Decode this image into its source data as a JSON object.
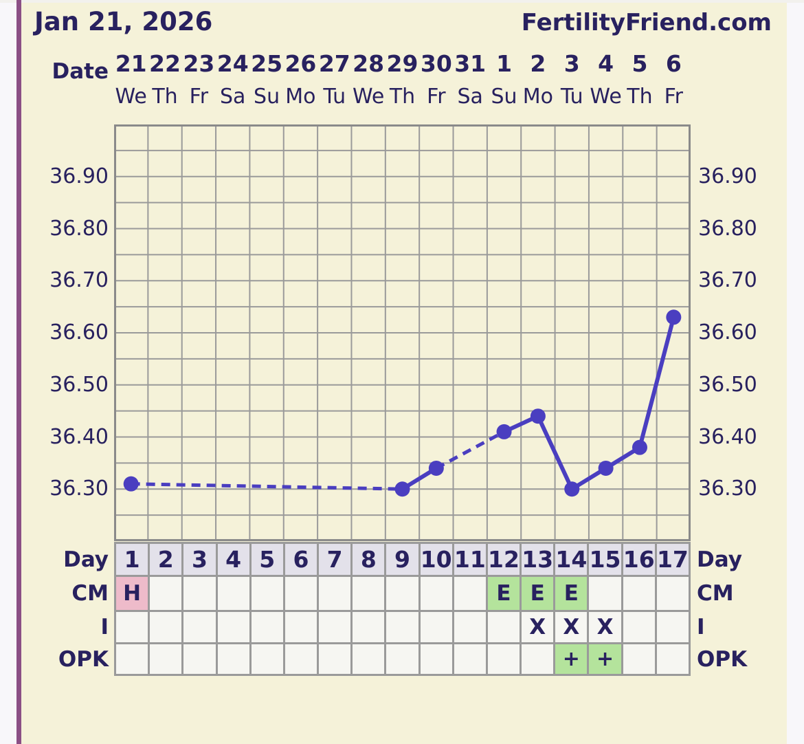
{
  "header": {
    "title": "Jan 21, 2026",
    "brand": "FertilityFriend.com"
  },
  "colors": {
    "navy": "#28215f",
    "cream": "#f5f2d9",
    "gutter": "#f8f7fa",
    "purple": "#8b4f85",
    "line": "#4a3ec0",
    "grid": "#9a9a9a",
    "dayrow": "#e3e1ea",
    "cellbg": "#f6f6f2",
    "green": "#b4e39c",
    "pink": "#eebbca"
  },
  "chart_data": {
    "type": "line",
    "x_axis_label": "Date",
    "x_tick_dates": [
      "21",
      "22",
      "23",
      "24",
      "25",
      "26",
      "27",
      "28",
      "29",
      "30",
      "31",
      "1",
      "2",
      "3",
      "4",
      "5",
      "6"
    ],
    "x_tick_weekdays": [
      "We",
      "Th",
      "Fr",
      "Sa",
      "Su",
      "Mo",
      "Tu",
      "We",
      "Th",
      "Fr",
      "Sa",
      "Su",
      "Mo",
      "Tu",
      "We",
      "Th",
      "Fr"
    ],
    "y_ticks": [
      "36.90",
      "36.80",
      "36.70",
      "36.60",
      "36.50",
      "36.40",
      "36.30"
    ],
    "ylim": [
      36.2,
      37.0
    ],
    "grid_step": 0.05,
    "columns": 17,
    "grid": "on",
    "series": [
      {
        "name": "temperature",
        "points": [
          {
            "day": 1,
            "temp": 36.31
          },
          {
            "day": 9,
            "temp": 36.3
          },
          {
            "day": 10,
            "temp": 36.34
          },
          {
            "day": 12,
            "temp": 36.41
          },
          {
            "day": 13,
            "temp": 36.44
          },
          {
            "day": 14,
            "temp": 36.3
          },
          {
            "day": 15,
            "temp": 36.34
          },
          {
            "day": 16,
            "temp": 36.38
          },
          {
            "day": 17,
            "temp": 36.63
          }
        ]
      }
    ],
    "missing_days": [
      2,
      3,
      4,
      5,
      6,
      7,
      8,
      11
    ],
    "dashed_when_day_gap": true
  },
  "table": {
    "day_label": "Day",
    "day_numbers": [
      "1",
      "2",
      "3",
      "4",
      "5",
      "6",
      "7",
      "8",
      "9",
      "10",
      "11",
      "12",
      "13",
      "14",
      "15",
      "16",
      "17"
    ],
    "row_labels": [
      "Day",
      "CM",
      "I",
      "OPK"
    ],
    "rows": [
      {
        "label": "CM",
        "cells": [
          {
            "day": 1,
            "text": "H",
            "highlight": "pink"
          },
          {
            "day": 12,
            "text": "E",
            "highlight": "green"
          },
          {
            "day": 13,
            "text": "E",
            "highlight": "green"
          },
          {
            "day": 14,
            "text": "E",
            "highlight": "green"
          }
        ]
      },
      {
        "label": "I",
        "cells": [
          {
            "day": 13,
            "text": "X"
          },
          {
            "day": 14,
            "text": "X"
          },
          {
            "day": 15,
            "text": "X"
          }
        ]
      },
      {
        "label": "OPK",
        "cells": [
          {
            "day": 14,
            "text": "+",
            "highlight": "green"
          },
          {
            "day": 15,
            "text": "+",
            "highlight": "green"
          }
        ]
      }
    ]
  }
}
